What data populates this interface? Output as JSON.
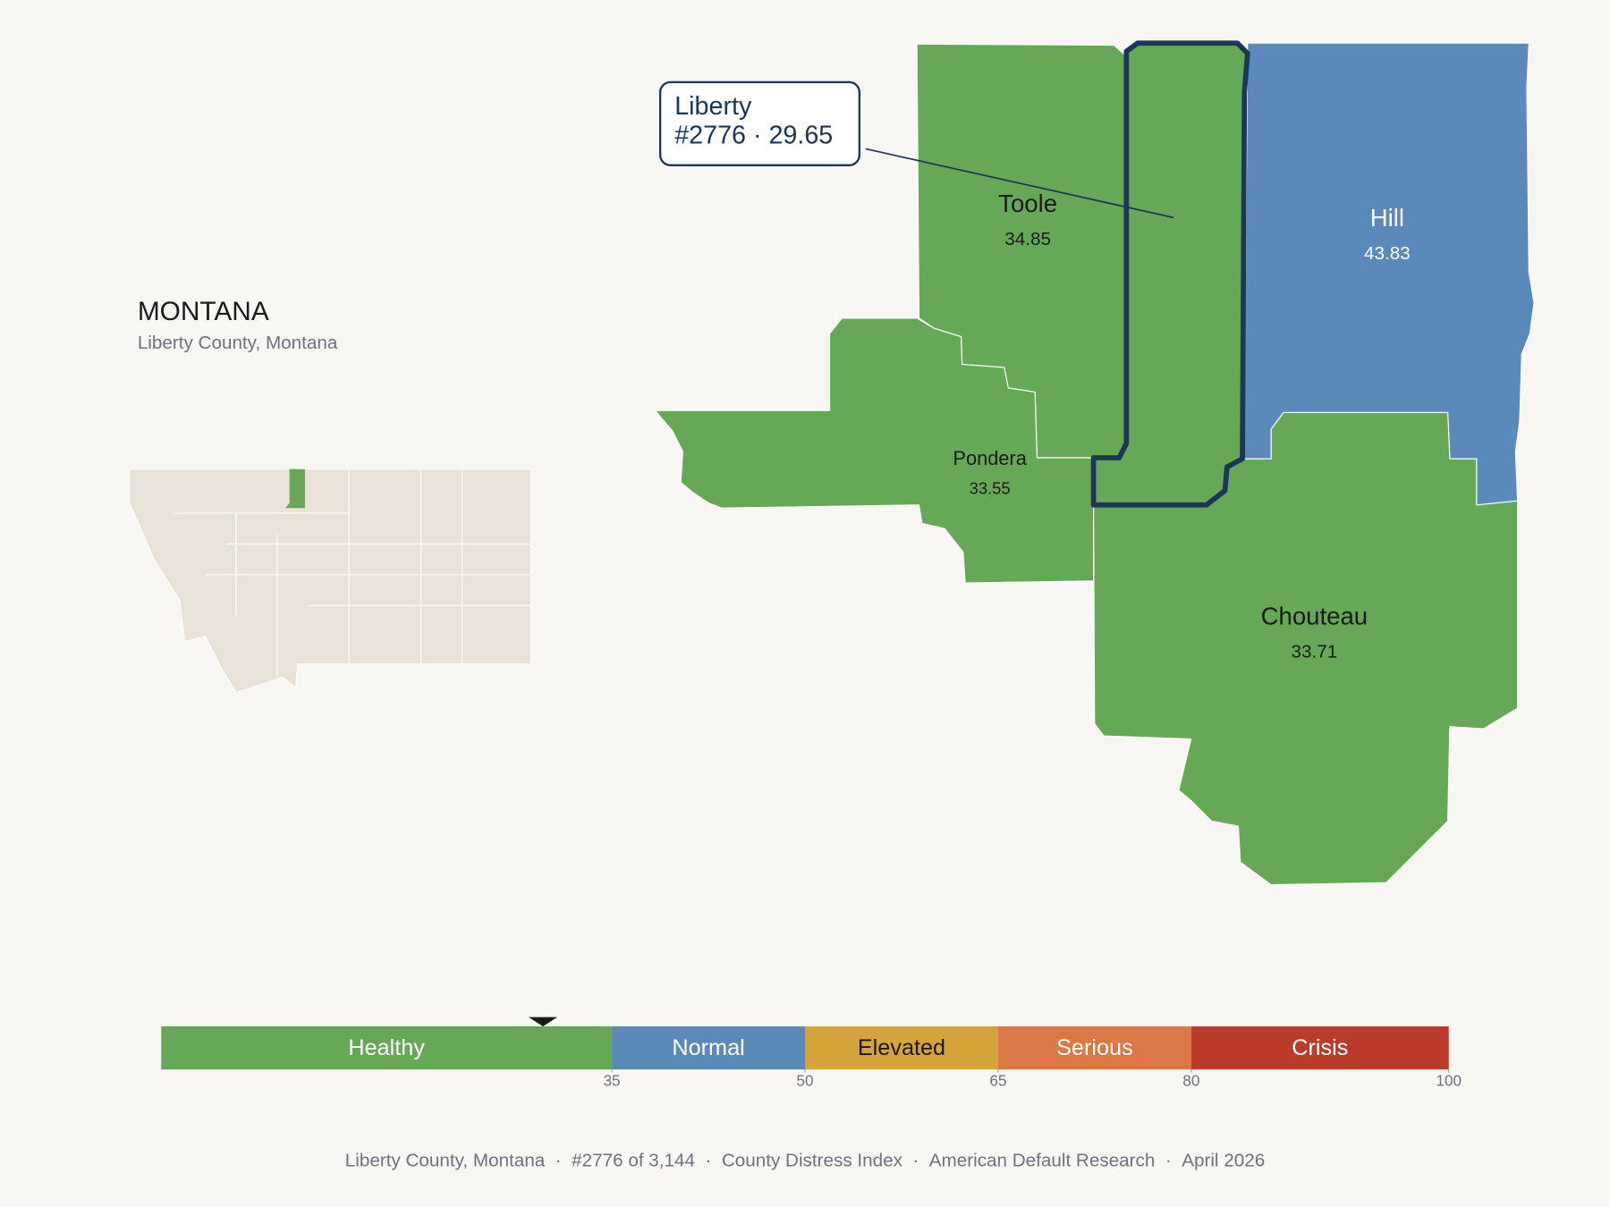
{
  "header": {
    "title": "MONTANA",
    "subtitle": "Liberty County, Montana"
  },
  "callout": {
    "name": "Liberty",
    "detail": "#2776 · 29.65"
  },
  "counties": [
    {
      "name": "Toole",
      "value": 34.85,
      "color": "#67a858"
    },
    {
      "name": "Hill",
      "value": 43.83,
      "color": "#5b89ba"
    },
    {
      "name": "Pondera",
      "value": 33.55,
      "color": "#67a858"
    },
    {
      "name": "Chouteau",
      "value": 33.71,
      "color": "#67a858"
    },
    {
      "name": "Liberty",
      "value": 29.65,
      "color": "#67a858"
    }
  ],
  "scale": {
    "xlim": [
      0,
      100
    ],
    "xticks": [
      35,
      50,
      65,
      80,
      100
    ],
    "marker": 29.65,
    "segments": [
      {
        "label": "Healthy",
        "color": "#67a858"
      },
      {
        "label": "Normal",
        "color": "#5b89ba"
      },
      {
        "label": "Elevated",
        "color": "#d4a33b"
      },
      {
        "label": "Serious",
        "color": "#dc7748"
      },
      {
        "label": "Crisis",
        "color": "#b93b2c"
      }
    ]
  },
  "footer": {
    "separator": "·",
    "items": [
      "Liberty County, Montana",
      "#2776 of 3,144",
      "County Distress Index",
      "American Default Research",
      "April 2026"
    ]
  }
}
